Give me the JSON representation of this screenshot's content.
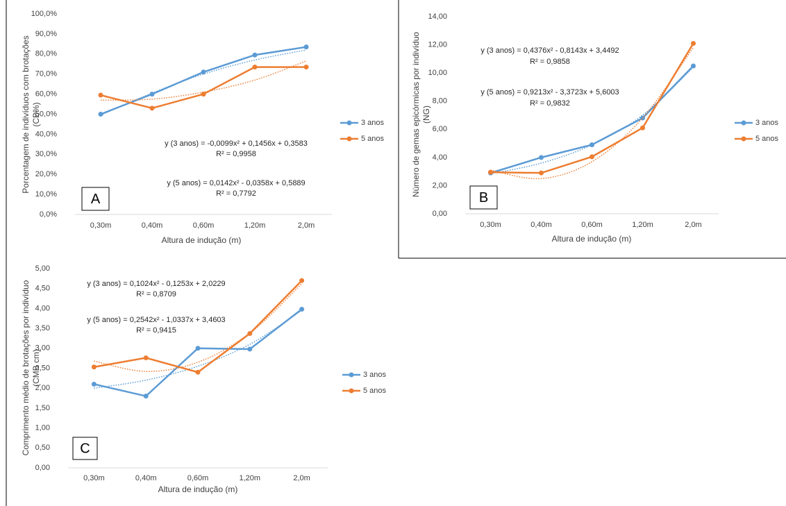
{
  "chart_data": [
    {
      "type": "line",
      "panel_label": "A",
      "ylabel": [
        "Porcentagem de indivíduos com brotações",
        "(CB%)"
      ],
      "xlabel": "Altura de indução (m)",
      "categories": [
        "0,30m",
        "0,40m",
        "0,60m",
        "1,20m",
        "2,0m"
      ],
      "series": [
        {
          "name": "3 anos",
          "color": "#5b9bd5",
          "values": [
            50,
            60,
            71,
            79.5,
            83.5
          ],
          "trendline": [
            49.5,
            60.5,
            70,
            77,
            82
          ]
        },
        {
          "name": "5 anos",
          "color": "#ed7d31",
          "values": [
            59.5,
            53,
            60,
            73.5,
            73.5
          ],
          "trendline": [
            57,
            57.5,
            61,
            67,
            76.5
          ]
        }
      ],
      "annotations": [
        "y (3 anos) = -0,0099x² + 0,1456x + 0,3583",
        "R² = 0,9958",
        "y (5 anos) = 0,0142x² - 0,0358x + 0,5889",
        "R² = 0,7792"
      ],
      "ylim": [
        0,
        100
      ],
      "yticks": [
        {
          "value": 0,
          "label": "0,0%"
        },
        {
          "value": 10,
          "label": "10,0%"
        },
        {
          "value": 20,
          "label": "20,0%"
        },
        {
          "value": 30,
          "label": "30,0%"
        },
        {
          "value": 40,
          "label": "40,0%"
        },
        {
          "value": 50,
          "label": "50,0%"
        },
        {
          "value": 60,
          "label": "60,0%"
        },
        {
          "value": 70,
          "label": "70,0%"
        },
        {
          "value": 80,
          "label": "80,0%"
        },
        {
          "value": 90,
          "label": "90,0%"
        },
        {
          "value": 100,
          "label": "100,0%"
        }
      ],
      "legend": "right"
    },
    {
      "type": "line",
      "panel_label": "B",
      "ylabel": [
        "Número de gemas epicórmicas por indivíduo",
        "(NG)"
      ],
      "xlabel": "Altura de indução (m)",
      "categories": [
        "0,30m",
        "0,40m",
        "0,60m",
        "1,20m",
        "2,0m"
      ],
      "series": [
        {
          "name": "3 anos",
          "color": "#5b9bd5",
          "values": [
            2.9,
            4.0,
            4.9,
            6.8,
            10.5
          ],
          "trendline": [
            2.85,
            3.6,
            4.9,
            7.0,
            10.4
          ]
        },
        {
          "name": "5 anos",
          "color": "#ed7d31",
          "values": [
            2.95,
            2.9,
            4.05,
            6.1,
            12.1
          ],
          "trendline": [
            3.1,
            2.5,
            3.7,
            6.8,
            11.8
          ]
        }
      ],
      "annotations": [
        "y (3 anos) = 0,4376x² - 0,8143x + 3,4492",
        "R² = 0,9858",
        "y (5 anos) = 0,9213x² - 3,3723x + 5,6003",
        "R² = 0,9832"
      ],
      "ylim": [
        0,
        14
      ],
      "yticks": [
        {
          "value": 0,
          "label": "0,00"
        },
        {
          "value": 2,
          "label": "2,00"
        },
        {
          "value": 4,
          "label": "4,00"
        },
        {
          "value": 6,
          "label": "6,00"
        },
        {
          "value": 8,
          "label": "8,00"
        },
        {
          "value": 10,
          "label": "10,00"
        },
        {
          "value": 12,
          "label": "12,00"
        },
        {
          "value": 14,
          "label": "14,00"
        }
      ],
      "legend": "right"
    },
    {
      "type": "line",
      "panel_label": "C",
      "ylabel": [
        "Comprimento médio de brotações por indivíduo",
        "(CMB cm)"
      ],
      "xlabel": "Altura de indução (m)",
      "categories": [
        "0,30m",
        "0,40m",
        "0,60m",
        "1,20m",
        "2,0m"
      ],
      "series": [
        {
          "name": "3 anos",
          "color": "#5b9bd5",
          "values": [
            2.1,
            1.8,
            3.0,
            2.98,
            3.98
          ],
          "trendline": [
            2.0,
            2.2,
            2.55,
            3.1,
            3.95
          ]
        },
        {
          "name": "5 anos",
          "color": "#ed7d31",
          "values": [
            2.53,
            2.76,
            2.4,
            3.37,
            4.7
          ],
          "trendline": [
            2.68,
            2.42,
            2.65,
            3.38,
            4.62
          ]
        }
      ],
      "annotations": [
        "y (3 anos) = 0,1024x² - 0,1253x + 2,0229",
        "R² = 0,8709",
        "y (5 anos) = 0,2542x² - 1,0337x + 3,4603",
        "R² = 0,9415"
      ],
      "ylim": [
        0,
        5
      ],
      "yticks": [
        {
          "value": 0,
          "label": "0,00"
        },
        {
          "value": 0.5,
          "label": "0,50"
        },
        {
          "value": 1,
          "label": "1,00"
        },
        {
          "value": 1.5,
          "label": "1,50"
        },
        {
          "value": 2,
          "label": "2,00"
        },
        {
          "value": 2.5,
          "label": "2,50"
        },
        {
          "value": 3,
          "label": "3,00"
        },
        {
          "value": 3.5,
          "label": "3,50"
        },
        {
          "value": 4,
          "label": "4,00"
        },
        {
          "value": 4.5,
          "label": "4,50"
        },
        {
          "value": 5,
          "label": "5,00"
        }
      ],
      "legend": "right"
    }
  ]
}
